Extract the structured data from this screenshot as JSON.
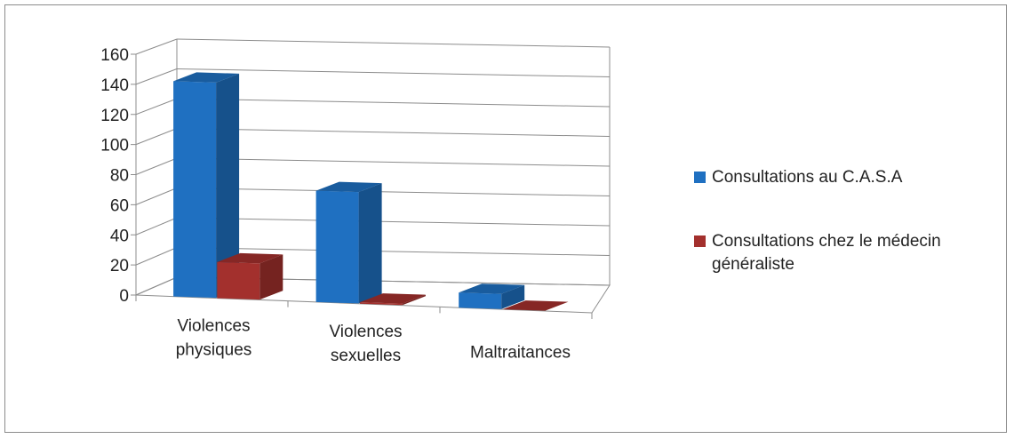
{
  "chart_data": {
    "type": "bar",
    "title": "",
    "xlabel": "",
    "ylabel": "",
    "ylim": [
      0,
      160
    ],
    "yticks": [
      "0",
      "20",
      "40",
      "60",
      "80",
      "100",
      "120",
      "140",
      "160"
    ],
    "grid": true,
    "legend_position": "right",
    "categories": [
      [
        "Violences",
        "physiques"
      ],
      [
        "Violences",
        "sexuelles"
      ],
      [
        "Maltraitances"
      ]
    ],
    "series": [
      {
        "name": "Consultations au C.A.S.A",
        "values": [
          143,
          74,
          10
        ],
        "color": "#1f70c1"
      },
      {
        "name": "Consultations chez le médecin généraliste",
        "values": [
          24,
          1,
          0
        ],
        "color": "#a3302d"
      }
    ]
  }
}
